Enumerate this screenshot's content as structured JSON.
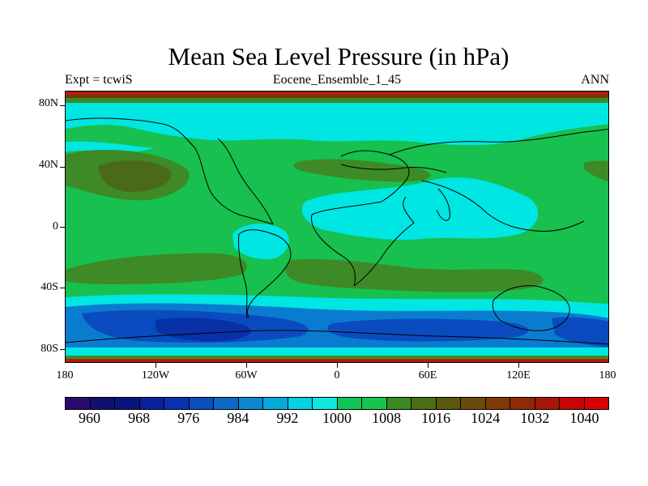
{
  "title": "Mean Sea Level Pressure (in hPa)",
  "left_string": "Expt = tcwiS",
  "center_string": "Eocene_Ensemble_1_45",
  "right_string": "ANN",
  "lat_labels": [
    "80N",
    "40N",
    "0",
    "40S",
    "80S"
  ],
  "lon_labels": [
    "180",
    "120W",
    "60W",
    "0",
    "60E",
    "120E",
    "180"
  ],
  "colorbar": {
    "labels": [
      "960",
      "968",
      "976",
      "984",
      "992",
      "1000",
      "1008",
      "1016",
      "1024",
      "1032",
      "1040"
    ],
    "colors": [
      "#2a0a6e",
      "#10106e",
      "#0a147f",
      "#08229b",
      "#0a32ad",
      "#0a4ebd",
      "#0d68c6",
      "#0e86d0",
      "#07a8da",
      "#06d0e2",
      "#0ee8e0",
      "#12c456",
      "#16c44e",
      "#3a8a24",
      "#4b6e14",
      "#5a5810",
      "#6b4a10",
      "#7e3a08",
      "#8e2a08",
      "#a71608",
      "#c80404",
      "#d80000"
    ]
  },
  "map_colors": {
    "ocean_mid": "#17c04f",
    "band_light": "#00e6e2",
    "band_brown": "#4a6a1a",
    "band_olive": "#3e8a26",
    "southern_blue": "#0a7cd0",
    "southern_deep": "#0a4cc0",
    "southern_core": "#0831a8",
    "polar_red": "#b81a08",
    "polar_brown": "#6a3a0a"
  }
}
